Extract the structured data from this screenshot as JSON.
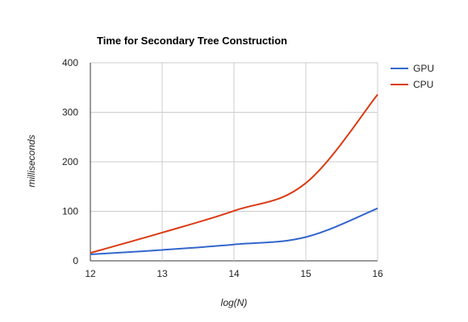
{
  "chart_data": {
    "type": "line",
    "title": "Time for Secondary Tree Construction",
    "xlabel": "log(N)",
    "ylabel": "milliseconds",
    "x": [
      12,
      13,
      14,
      15,
      16
    ],
    "xlim": [
      12,
      16
    ],
    "ylim": [
      0,
      400
    ],
    "xticks": [
      "12",
      "13",
      "14",
      "15",
      "16"
    ],
    "yticks": [
      "0",
      "100",
      "200",
      "300",
      "400"
    ],
    "grid": true,
    "legend_position": "right",
    "series": [
      {
        "name": "GPU",
        "color": "#3366cc",
        "values": [
          13,
          22,
          33,
          48,
          106
        ]
      },
      {
        "name": "CPU",
        "color": "#dc3912",
        "values": [
          16,
          57,
          101,
          157,
          336
        ]
      }
    ]
  }
}
